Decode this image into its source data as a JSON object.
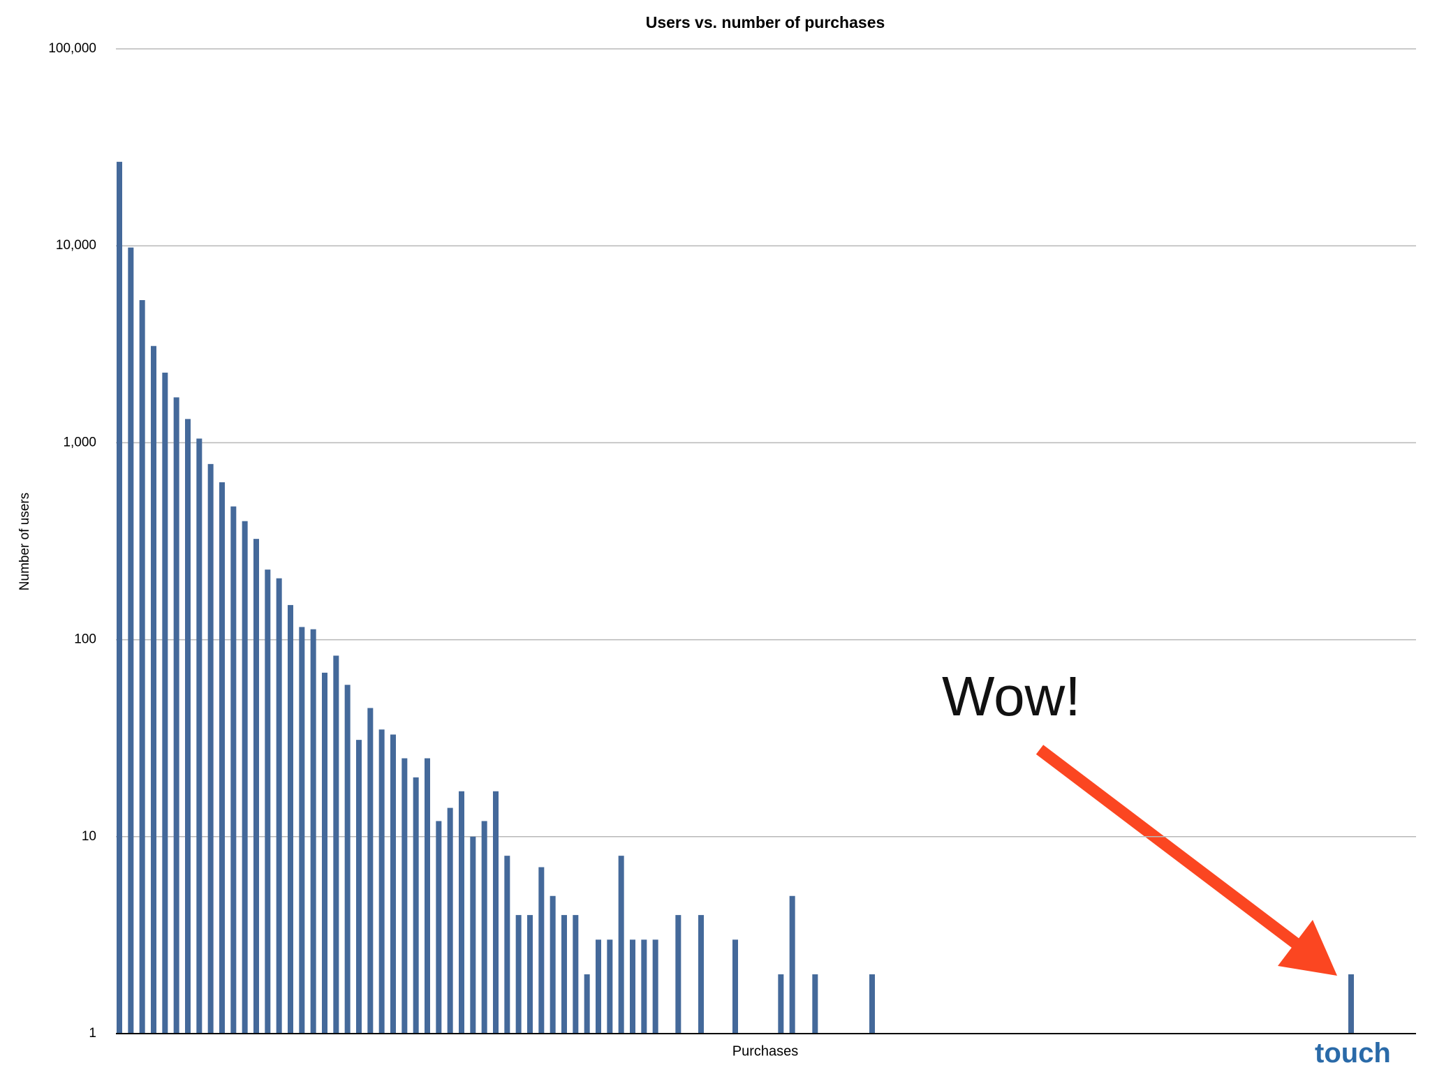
{
  "chart_data": {
    "type": "bar",
    "title": "Users vs. number of purchases",
    "x_label": "Purchases",
    "y_label": "Number of users",
    "annotations": [
      "Wow!",
      "touch"
    ],
    "log_scale": true,
    "grid": true,
    "color": "#44699a",
    "categories": [
      null,
      null,
      null,
      null,
      null,
      null,
      null,
      null,
      null,
      null,
      null,
      null,
      null,
      null,
      null,
      null,
      null,
      null,
      null,
      null,
      null,
      null,
      null,
      null,
      null,
      null,
      null,
      null,
      null,
      null,
      null,
      null,
      null,
      null,
      null,
      null,
      null,
      null,
      null,
      null,
      null,
      null,
      null,
      null,
      null,
      null,
      null,
      null,
      null,
      null,
      null,
      null,
      null,
      null,
      null,
      null,
      null,
      null,
      null,
      null,
      null,
      null,
      null,
      null,
      null,
      null,
      null,
      null,
      null,
      null,
      null,
      null,
      null,
      null,
      null,
      null,
      null,
      null,
      null,
      null,
      null,
      null,
      null,
      null,
      null,
      null,
      null,
      null,
      null,
      null,
      null,
      null,
      null,
      null,
      null,
      null,
      null,
      null,
      null,
      null,
      null,
      null,
      null,
      null,
      null,
      null,
      null,
      null,
      null,
      null,
      null,
      null,
      null,
      null
    ],
    "values": [
      26700,
      9800,
      5300,
      3100,
      2270,
      1700,
      1320,
      1050,
      780,
      630,
      475,
      400,
      325,
      227,
      205,
      150,
      116,
      113,
      68,
      83,
      59,
      31,
      45,
      35,
      33,
      25,
      20,
      25,
      12,
      14,
      17,
      10,
      12,
      17,
      8,
      4,
      4,
      7,
      5,
      4,
      4,
      2,
      3,
      3,
      8,
      3,
      3,
      3,
      null,
      4,
      null,
      4,
      null,
      null,
      3,
      null,
      null,
      null,
      2,
      5,
      null,
      2,
      null,
      null,
      null,
      null,
      2,
      null,
      null,
      null,
      null,
      null,
      null,
      null,
      null,
      null,
      null,
      null,
      null,
      null,
      null,
      null,
      null,
      null,
      null,
      null,
      null,
      null,
      null,
      null,
      null,
      null,
      null,
      null,
      null,
      null,
      null,
      null,
      null,
      null,
      null,
      null,
      null,
      null,
      null,
      null,
      null,
      null,
      2,
      null,
      null,
      null,
      null,
      null
    ],
    "ylim": [
      1,
      100000
    ],
    "yticks": [
      1,
      10,
      100,
      {
        "value": 1000,
        "label": "1,000"
      },
      {
        "value": 10000,
        "label": "10,000"
      },
      {
        "value": 100000,
        "label": "100,000"
      }
    ]
  }
}
